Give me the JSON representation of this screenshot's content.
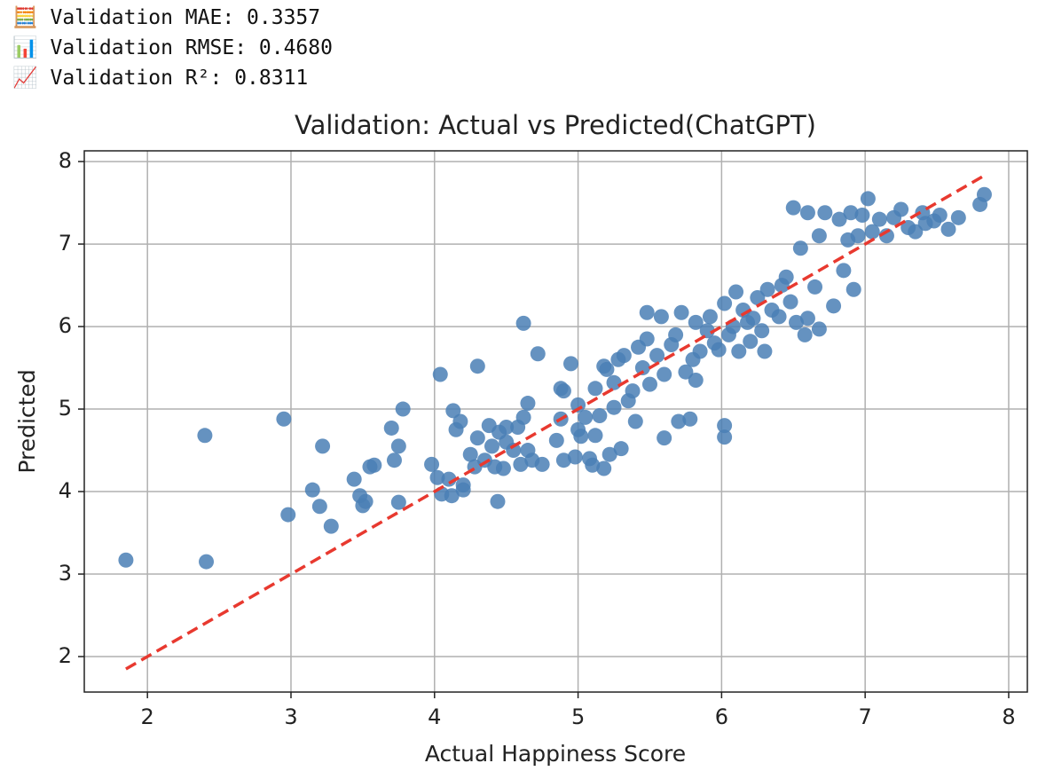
{
  "output_lines": [
    "🧮 Validation MAE: 0.3357",
    "📊 Validation RMSE: 0.4680",
    "📈 Validation R²: 0.8311"
  ],
  "chart_data": {
    "type": "scatter",
    "title": "Validation: Actual vs Predicted(ChatGPT)",
    "x_label": "Actual Happiness Score",
    "y_label": "Predicted",
    "xlim": [
      1.56,
      8.13
    ],
    "ylim": [
      1.57,
      8.13
    ],
    "xticks": [
      2,
      3,
      4,
      5,
      6,
      7,
      8
    ],
    "yticks": [
      2,
      3,
      4,
      5,
      6,
      7,
      8
    ],
    "grid": true,
    "series": [
      {
        "color": "#4a7fb5",
        "x": [
          1.85,
          2.4,
          2.41,
          2.95,
          2.98,
          3.15,
          3.2,
          3.22,
          3.28,
          3.44,
          3.48,
          3.5,
          3.52,
          3.55,
          3.58,
          3.7,
          3.72,
          3.75,
          3.75,
          3.78,
          3.98,
          4.02,
          4.04,
          4.05,
          4.1,
          4.12,
          4.13,
          4.15,
          4.18,
          4.2,
          4.2,
          4.25,
          4.28,
          4.3,
          4.3,
          4.35,
          4.38,
          4.4,
          4.42,
          4.44,
          4.45,
          4.48,
          4.5,
          4.5,
          4.55,
          4.58,
          4.6,
          4.62,
          4.62,
          4.65,
          4.65,
          4.68,
          4.72,
          4.75,
          4.85,
          4.88,
          4.88,
          4.9,
          4.9,
          4.95,
          4.98,
          5.0,
          5.0,
          5.02,
          5.05,
          5.08,
          5.1,
          5.12,
          5.12,
          5.15,
          5.18,
          5.18,
          5.2,
          5.22,
          5.25,
          5.25,
          5.28,
          5.3,
          5.32,
          5.35,
          5.38,
          5.4,
          5.42,
          5.45,
          5.48,
          5.48,
          5.5,
          5.55,
          5.58,
          5.6,
          5.6,
          5.65,
          5.68,
          5.7,
          5.72,
          5.75,
          5.78,
          5.8,
          5.82,
          5.82,
          5.85,
          5.9,
          5.92,
          5.95,
          5.98,
          6.02,
          6.02,
          6.02,
          6.05,
          6.08,
          6.1,
          6.12,
          6.15,
          6.18,
          6.2,
          6.22,
          6.25,
          6.28,
          6.3,
          6.32,
          6.35,
          6.4,
          6.42,
          6.45,
          6.48,
          6.5,
          6.52,
          6.55,
          6.58,
          6.6,
          6.6,
          6.65,
          6.68,
          6.68,
          6.72,
          6.78,
          6.82,
          6.85,
          6.88,
          6.9,
          6.92,
          6.95,
          6.98,
          7.02,
          7.05,
          7.1,
          7.15,
          7.2,
          7.25,
          7.3,
          7.35,
          7.4,
          7.42,
          7.48,
          7.52,
          7.58,
          7.65,
          7.8,
          7.83
        ],
        "values": [
          3.17,
          4.68,
          3.15,
          4.88,
          3.72,
          4.02,
          3.82,
          4.55,
          3.58,
          4.15,
          3.95,
          3.83,
          3.88,
          4.3,
          4.32,
          4.77,
          4.38,
          4.55,
          3.87,
          5.0,
          4.33,
          4.17,
          5.42,
          3.97,
          4.15,
          3.95,
          4.98,
          4.75,
          4.85,
          4.08,
          4.02,
          4.45,
          4.3,
          4.65,
          5.52,
          4.38,
          4.8,
          4.55,
          4.3,
          3.88,
          4.72,
          4.28,
          4.6,
          4.78,
          4.5,
          4.78,
          4.33,
          4.9,
          6.04,
          5.07,
          4.5,
          4.38,
          5.67,
          4.33,
          4.62,
          5.25,
          4.88,
          5.22,
          4.38,
          5.55,
          4.42,
          5.05,
          4.75,
          4.67,
          4.9,
          4.4,
          4.32,
          5.25,
          4.68,
          4.92,
          5.52,
          4.28,
          5.48,
          4.45,
          5.32,
          5.02,
          5.6,
          4.52,
          5.65,
          5.1,
          5.22,
          4.85,
          5.75,
          5.5,
          6.17,
          5.85,
          5.3,
          5.65,
          6.12,
          5.42,
          4.65,
          5.78,
          5.9,
          4.85,
          6.17,
          5.45,
          4.88,
          5.6,
          6.05,
          5.35,
          5.7,
          5.95,
          6.12,
          5.8,
          5.72,
          6.28,
          4.8,
          4.66,
          5.9,
          6.0,
          6.42,
          5.7,
          6.2,
          6.05,
          5.82,
          6.1,
          6.35,
          5.95,
          5.7,
          6.45,
          6.2,
          6.12,
          6.5,
          6.6,
          6.3,
          7.44,
          6.05,
          6.95,
          5.9,
          6.1,
          7.38,
          6.48,
          5.97,
          7.1,
          7.38,
          6.25,
          7.3,
          6.68,
          7.05,
          7.38,
          6.45,
          7.1,
          7.35,
          7.55,
          7.15,
          7.3,
          7.1,
          7.32,
          7.42,
          7.2,
          7.15,
          7.38,
          7.25,
          7.28,
          7.35,
          7.18,
          7.32,
          7.48,
          7.6
        ]
      }
    ],
    "reference_line": {
      "color": "#e8392f",
      "linestyle": "dashed",
      "x": [
        1.85,
        7.83
      ],
      "values": [
        1.85,
        7.83
      ]
    }
  }
}
